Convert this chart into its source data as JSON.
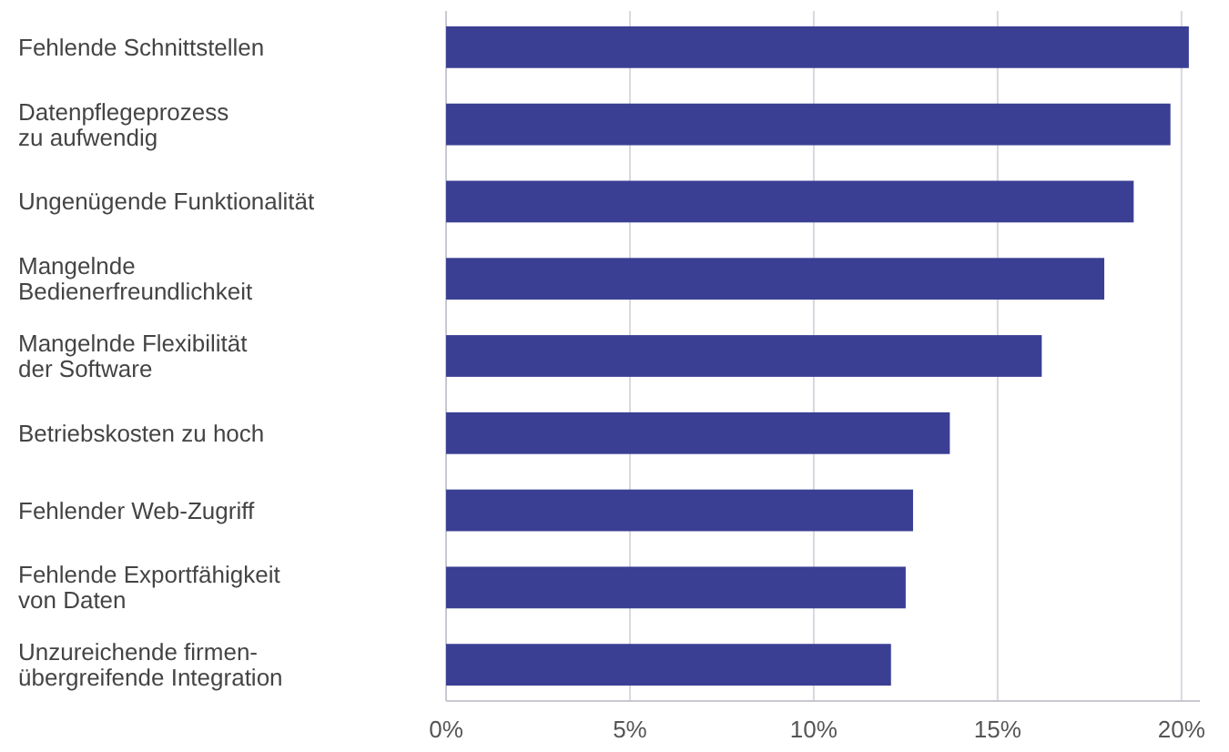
{
  "chart_data": {
    "type": "bar",
    "orientation": "horizontal",
    "categories": [
      "Fehlende Schnittstellen",
      "Datenpflegeprozess\nzu aufwendig",
      "Ungenügende Funktionalität",
      "Mangelnde\nBedienerfreundlichkeit",
      "Mangelnde Flexibilität\nder Software",
      "Betriebskosten zu hoch",
      "Fehlender Web-Zugriff",
      "Fehlende Exportfähigkeit\nvon Daten",
      "Unzureichende firmen-\nübergreifende Integration"
    ],
    "values": [
      20.2,
      19.7,
      18.7,
      17.9,
      16.2,
      13.7,
      12.7,
      12.5,
      12.1
    ],
    "color": "#3a3f94",
    "xlim": [
      0,
      20.5
    ],
    "xticks": [
      {
        "value": 0,
        "label": "0%"
      },
      {
        "value": 5,
        "label": "5%"
      },
      {
        "value": 10,
        "label": "10%"
      },
      {
        "value": 15,
        "label": "15%"
      },
      {
        "value": 20,
        "label": "20%"
      }
    ],
    "grid": "x"
  }
}
